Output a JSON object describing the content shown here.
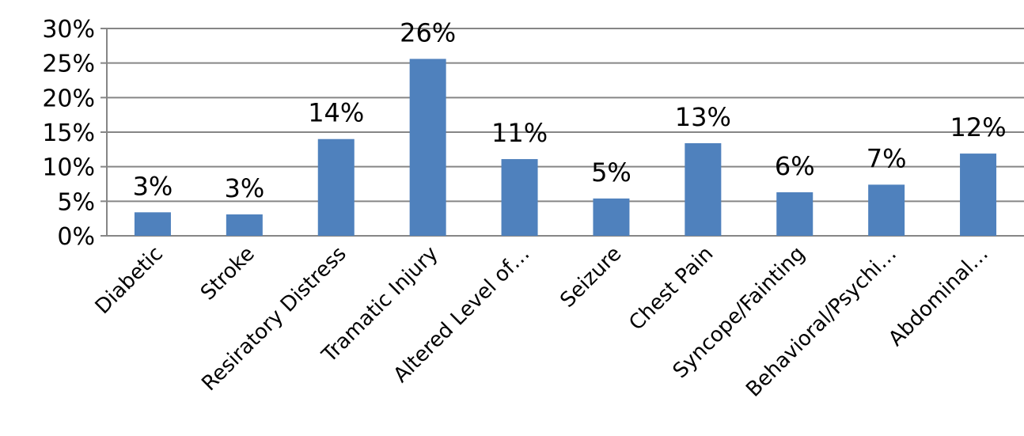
{
  "chart_data": {
    "type": "bar",
    "categories": [
      "Diabetic",
      "Stroke",
      "Resiratory Distress",
      "Tramatic Injury",
      "Altered Level of…",
      "Seizure",
      "Chest Pain",
      "Syncope/Fainting",
      "Behavioral/Psychi…",
      "Abdominal…"
    ],
    "values": [
      3.4,
      3.1,
      14.0,
      25.6,
      11.1,
      5.4,
      13.4,
      6.3,
      7.4,
      11.9
    ],
    "value_labels": [
      "3%",
      "3%",
      "14%",
      "26%",
      "11%",
      "5%",
      "13%",
      "6%",
      "7%",
      "12%"
    ],
    "color": "#4f81bd",
    "ylim": [
      0,
      30
    ],
    "yticks": [
      {
        "value": 0,
        "label": "0%"
      },
      {
        "value": 5,
        "label": "5%"
      },
      {
        "value": 10,
        "label": "10%"
      },
      {
        "value": 15,
        "label": "15%"
      },
      {
        "value": 20,
        "label": "20%"
      },
      {
        "value": 25,
        "label": "25%"
      },
      {
        "value": 30,
        "label": "30%"
      }
    ],
    "grid": true
  }
}
